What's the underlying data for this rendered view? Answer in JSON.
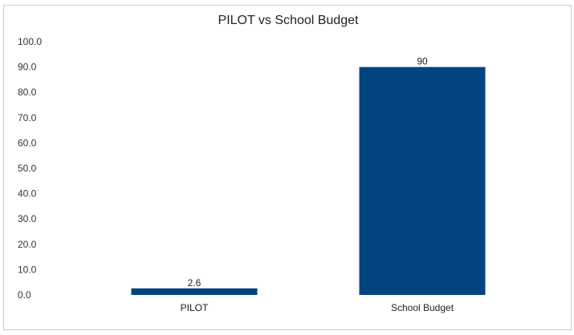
{
  "chart_data": {
    "type": "bar",
    "title": "PILOT vs School Budget",
    "xlabel": "",
    "ylabel": "",
    "categories": [
      "PILOT",
      "School Budget"
    ],
    "values": [
      2.6,
      90
    ],
    "data_labels": [
      "2.6",
      "90"
    ],
    "ylim": [
      0,
      100
    ],
    "yticks": [
      "0.0",
      "10.0",
      "20.0",
      "30.0",
      "40.0",
      "50.0",
      "60.0",
      "70.0",
      "80.0",
      "90.0",
      "100.0"
    ],
    "grid": false,
    "legend": "none",
    "bar_color": "#00437f"
  }
}
